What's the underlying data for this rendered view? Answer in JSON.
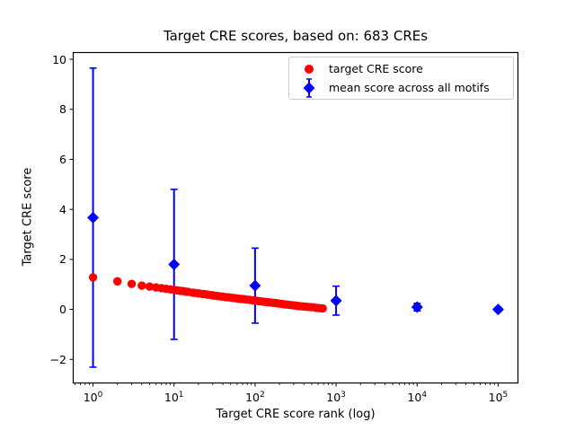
{
  "chart_data": {
    "type": "scatter",
    "title": "Target CRE scores, based on: 683 CREs",
    "xlabel": "Target CRE score rank (log)",
    "ylabel": "Target CRE score",
    "x_scale": "log",
    "xlim_log10": [
      -0.25,
      5.25
    ],
    "ylim": [
      -2.96,
      10.29
    ],
    "x_major_ticks": [
      1,
      10,
      100,
      1000,
      10000,
      100000
    ],
    "y_ticks": [
      -2,
      0,
      2,
      4,
      6,
      8,
      10
    ],
    "grid": false,
    "legend": {
      "position": "upper right",
      "entries": [
        {
          "label": "target CRE score",
          "marker": "circle",
          "color": "#ff0000"
        },
        {
          "label": "mean score across all motifs",
          "marker": "diamond-errorbar",
          "color": "#0000ff"
        }
      ]
    },
    "series": [
      {
        "name": "target CRE score",
        "type": "scatter",
        "marker": "circle",
        "color": "#ff0000",
        "n_total_points": 683,
        "points": [
          [
            1,
            1.28
          ],
          [
            2,
            1.12
          ],
          [
            3,
            1.02
          ],
          [
            4,
            0.95
          ],
          [
            5,
            0.91
          ],
          [
            6,
            0.88
          ],
          [
            7,
            0.85
          ],
          [
            8,
            0.82
          ],
          [
            9,
            0.8
          ],
          [
            10,
            0.78
          ],
          [
            11,
            0.76
          ],
          [
            12,
            0.74
          ],
          [
            13,
            0.73
          ],
          [
            14,
            0.71
          ],
          [
            15,
            0.7
          ],
          [
            17,
            0.67
          ],
          [
            18,
            0.66
          ],
          [
            20,
            0.64
          ],
          [
            22,
            0.62
          ],
          [
            24,
            0.61
          ],
          [
            26,
            0.59
          ],
          [
            29,
            0.57
          ],
          [
            31,
            0.55
          ],
          [
            34,
            0.54
          ],
          [
            37,
            0.52
          ],
          [
            40,
            0.51
          ],
          [
            44,
            0.49
          ],
          [
            48,
            0.48
          ],
          [
            52,
            0.46
          ],
          [
            57,
            0.45
          ],
          [
            62,
            0.43
          ],
          [
            67,
            0.42
          ],
          [
            73,
            0.41
          ],
          [
            79,
            0.39
          ],
          [
            86,
            0.38
          ],
          [
            94,
            0.36
          ],
          [
            102,
            0.35
          ],
          [
            111,
            0.33
          ],
          [
            120,
            0.32
          ],
          [
            131,
            0.3
          ],
          [
            142,
            0.29
          ],
          [
            154,
            0.28
          ],
          [
            168,
            0.26
          ],
          [
            182,
            0.25
          ],
          [
            198,
            0.23
          ],
          [
            215,
            0.22
          ],
          [
            234,
            0.2
          ],
          [
            254,
            0.19
          ],
          [
            276,
            0.17
          ],
          [
            300,
            0.16
          ],
          [
            326,
            0.15
          ],
          [
            354,
            0.13
          ],
          [
            384,
            0.12
          ],
          [
            417,
            0.11
          ],
          [
            453,
            0.1
          ],
          [
            492,
            0.09
          ],
          [
            534,
            0.08
          ],
          [
            580,
            0.06
          ],
          [
            630,
            0.05
          ],
          [
            683,
            0.04
          ]
        ]
      },
      {
        "name": "mean score across all motifs",
        "type": "errorbar",
        "marker": "diamond",
        "color": "#0000ff",
        "points": [
          {
            "x": 1,
            "mean": 3.67,
            "err": 5.98
          },
          {
            "x": 10,
            "mean": 1.8,
            "err": 3.0
          },
          {
            "x": 100,
            "mean": 0.95,
            "err": 1.5
          },
          {
            "x": 1000,
            "mean": 0.35,
            "err": 0.58
          },
          {
            "x": 10000,
            "mean": 0.09,
            "err": 0.15
          },
          {
            "x": 100000,
            "mean": 0.0,
            "err": 0.08
          }
        ]
      }
    ],
    "colors": {
      "red_series": "#ff0000",
      "blue_series": "#0000ff",
      "axis": "#000000",
      "legend_border": "#cccccc",
      "background": "#ffffff"
    }
  }
}
